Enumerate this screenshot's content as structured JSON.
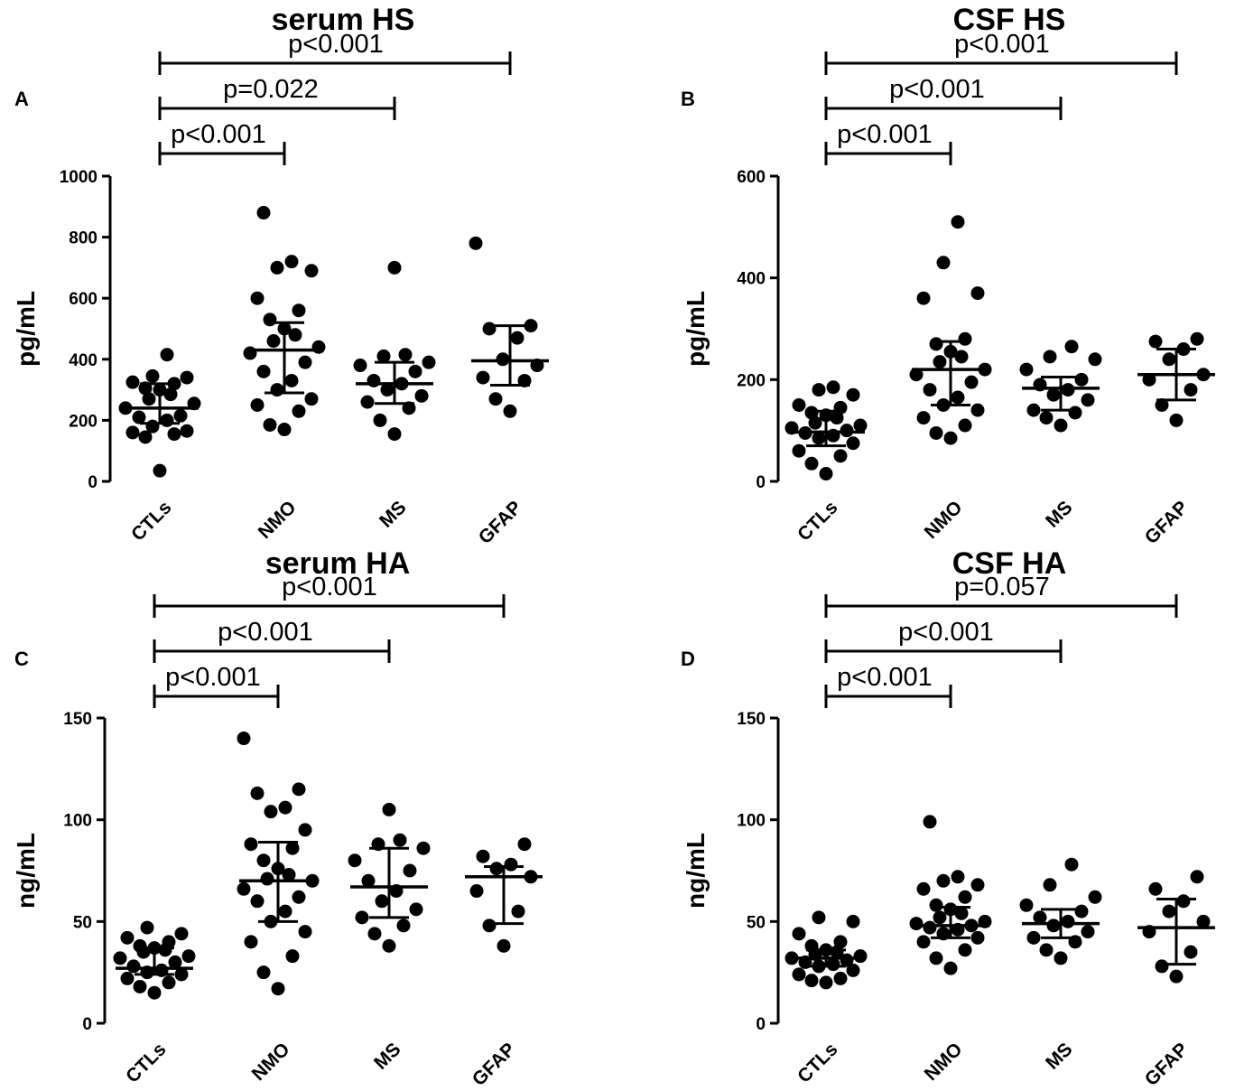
{
  "chart_data": [
    {
      "type": "scatter",
      "panel": "A",
      "title": "serum HS",
      "ylabel": "pg/mL",
      "xlabel": "",
      "categories": [
        "CTLs",
        "NMO",
        "MS",
        "GFAP"
      ],
      "yticks": [
        "0",
        "200",
        "400",
        "600",
        "800",
        "1000"
      ],
      "ylim": [
        0,
        1000
      ],
      "series": [
        {
          "name": "CTLs",
          "values": [
            35,
            145,
            155,
            160,
            165,
            180,
            200,
            210,
            215,
            240,
            255,
            270,
            285,
            300,
            305,
            320,
            325,
            340,
            345,
            415
          ],
          "median": 240,
          "iqr": [
            190,
            320
          ]
        },
        {
          "name": "NMO",
          "values": [
            170,
            185,
            230,
            250,
            270,
            300,
            330,
            360,
            390,
            420,
            440,
            460,
            480,
            500,
            530,
            560,
            600,
            690,
            700,
            720,
            880
          ],
          "median": 430,
          "iqr": [
            290,
            520
          ]
        },
        {
          "name": "MS",
          "values": [
            155,
            200,
            240,
            260,
            280,
            300,
            320,
            330,
            360,
            380,
            390,
            410,
            415,
            700
          ],
          "median": 320,
          "iqr": [
            255,
            390
          ]
        },
        {
          "name": "GFAP",
          "values": [
            230,
            270,
            330,
            340,
            380,
            400,
            470,
            500,
            510,
            780
          ],
          "median": 395,
          "iqr": [
            315,
            510
          ]
        }
      ],
      "comparisons": [
        {
          "from": "CTLs",
          "to": "NMO",
          "label": "p<0.001"
        },
        {
          "from": "CTLs",
          "to": "MS",
          "label": "p=0.022"
        },
        {
          "from": "CTLs",
          "to": "GFAP",
          "label": "p<0.001"
        }
      ]
    },
    {
      "type": "scatter",
      "panel": "B",
      "title": "CSF HS",
      "ylabel": "pg/mL",
      "xlabel": "",
      "categories": [
        "CTLs",
        "NMO",
        "MS",
        "GFAP"
      ],
      "yticks": [
        "0",
        "200",
        "400",
        "600"
      ],
      "ylim": [
        0,
        600
      ],
      "series": [
        {
          "name": "CTLs",
          "values": [
            15,
            35,
            50,
            60,
            75,
            85,
            90,
            95,
            100,
            105,
            110,
            115,
            125,
            130,
            135,
            145,
            150,
            170,
            180,
            185
          ],
          "median": 97,
          "iqr": [
            70,
            138
          ]
        },
        {
          "name": "NMO",
          "values": [
            85,
            95,
            110,
            125,
            140,
            150,
            165,
            180,
            195,
            210,
            220,
            235,
            245,
            255,
            270,
            280,
            360,
            370,
            430,
            510
          ],
          "median": 220,
          "iqr": [
            150,
            275
          ]
        },
        {
          "name": "MS",
          "values": [
            110,
            125,
            135,
            140,
            160,
            170,
            180,
            190,
            200,
            220,
            240,
            245,
            265
          ],
          "median": 183,
          "iqr": [
            140,
            205
          ]
        },
        {
          "name": "GFAP",
          "values": [
            120,
            150,
            180,
            200,
            210,
            240,
            260,
            275,
            280
          ],
          "median": 210,
          "iqr": [
            160,
            260
          ]
        }
      ],
      "comparisons": [
        {
          "from": "CTLs",
          "to": "NMO",
          "label": "p<0.001"
        },
        {
          "from": "CTLs",
          "to": "MS",
          "label": "p<0.001"
        },
        {
          "from": "CTLs",
          "to": "GFAP",
          "label": "p<0.001"
        }
      ]
    },
    {
      "type": "scatter",
      "panel": "C",
      "title": "serum HA",
      "ylabel": "ng/mL",
      "xlabel": "",
      "categories": [
        "CTLs",
        "NMO",
        "MS",
        "GFAP"
      ],
      "yticks": [
        "0",
        "50",
        "100",
        "150"
      ],
      "ylim": [
        0,
        150
      ],
      "series": [
        {
          "name": "CTLs",
          "values": [
            15,
            18,
            20,
            22,
            24,
            25,
            26,
            28,
            30,
            32,
            33,
            35,
            36,
            37,
            38,
            40,
            42,
            44,
            47
          ],
          "median": 27,
          "iqr": [
            24,
            37
          ]
        },
        {
          "name": "NMO",
          "values": [
            17,
            25,
            33,
            40,
            45,
            50,
            55,
            60,
            62,
            66,
            70,
            71,
            73,
            76,
            80,
            86,
            88,
            95,
            104,
            106,
            113,
            115,
            140
          ],
          "median": 70,
          "iqr": [
            50,
            89
          ]
        },
        {
          "name": "MS",
          "values": [
            38,
            44,
            48,
            52,
            56,
            60,
            65,
            70,
            75,
            80,
            86,
            88,
            90,
            105
          ],
          "median": 67,
          "iqr": [
            52,
            86
          ]
        },
        {
          "name": "GFAP",
          "values": [
            38,
            48,
            55,
            65,
            72,
            76,
            78,
            82,
            88
          ],
          "median": 72,
          "iqr": [
            49,
            77
          ]
        }
      ],
      "comparisons": [
        {
          "from": "CTLs",
          "to": "NMO",
          "label": "p<0.001"
        },
        {
          "from": "CTLs",
          "to": "MS",
          "label": "p<0.001"
        },
        {
          "from": "CTLs",
          "to": "GFAP",
          "label": "p<0.001"
        }
      ]
    },
    {
      "type": "scatter",
      "panel": "D",
      "title": "CSF HA",
      "ylabel": "ng/mL",
      "xlabel": "",
      "categories": [
        "CTLs",
        "NMO",
        "MS",
        "GFAP"
      ],
      "yticks": [
        "0",
        "50",
        "100",
        "150"
      ],
      "ylim": [
        0,
        150
      ],
      "series": [
        {
          "name": "CTLs",
          "values": [
            20,
            21,
            22,
            24,
            26,
            28,
            29,
            30,
            31,
            32,
            33,
            34,
            35,
            36,
            38,
            40,
            44,
            50,
            52
          ],
          "median": 32,
          "iqr": [
            28,
            36
          ]
        },
        {
          "name": "NMO",
          "values": [
            27,
            32,
            36,
            40,
            42,
            44,
            46,
            47,
            48,
            49,
            50,
            52,
            54,
            56,
            58,
            62,
            66,
            68,
            70,
            72,
            99
          ],
          "median": 48,
          "iqr": [
            42,
            57
          ]
        },
        {
          "name": "MS",
          "values": [
            32,
            36,
            40,
            42,
            45,
            48,
            50,
            52,
            55,
            58,
            62,
            68,
            78
          ],
          "median": 49,
          "iqr": [
            42,
            56
          ]
        },
        {
          "name": "GFAP",
          "values": [
            23,
            28,
            35,
            45,
            50,
            55,
            60,
            66,
            72
          ],
          "median": 47,
          "iqr": [
            29,
            61
          ]
        }
      ],
      "comparisons": [
        {
          "from": "CTLs",
          "to": "NMO",
          "label": "p<0.001"
        },
        {
          "from": "CTLs",
          "to": "MS",
          "label": "p<0.001"
        },
        {
          "from": "CTLs",
          "to": "GFAP",
          "label": "p=0.057"
        }
      ]
    }
  ]
}
